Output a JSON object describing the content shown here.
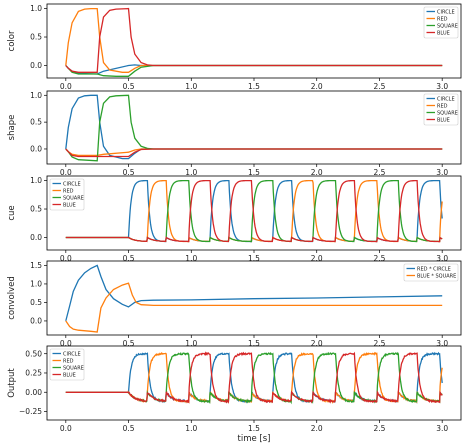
{
  "figure": {
    "xlabel": "time [s]"
  },
  "legend_colors": {
    "CIRCLE": "#1f77b4",
    "RED": "#ff7f0e",
    "SQUARE": "#2ca02c",
    "BLUE": "#d62728",
    "RED * CIRCLE": "#1f77b4",
    "BLUE * SQUARE": "#ff7f0e"
  },
  "chart_data": [
    {
      "type": "line",
      "ylabel": "color",
      "xlim": [
        -0.15,
        3.15
      ],
      "ylim": [
        -0.22,
        1.08
      ],
      "xticks": [
        0.0,
        0.5,
        1.0,
        1.5,
        2.0,
        2.5,
        3.0
      ],
      "xticklabels": [
        "0.0",
        "0.5",
        "1.0",
        "1.5",
        "2.0",
        "2.5",
        "3.0"
      ],
      "yticks": [
        0.0,
        0.5,
        1.0
      ],
      "yticklabels": [
        "0.0",
        "0.5",
        "1.0"
      ],
      "legend": [
        "CIRCLE",
        "RED",
        "SQUARE",
        "BLUE"
      ],
      "legend_loc": "upper right",
      "series": [
        {
          "name": "CIRCLE",
          "color": "#1f77b4",
          "x": [
            0,
            0.02,
            0.05,
            0.1,
            0.25,
            0.3,
            0.5,
            0.55,
            0.6,
            0.7,
            3.0
          ],
          "y": [
            0,
            -0.05,
            -0.1,
            -0.14,
            -0.15,
            -0.1,
            0.0,
            0.01,
            0.0,
            0.0,
            0.0
          ]
        },
        {
          "name": "RED",
          "color": "#ff7f0e",
          "x": [
            0,
            0.02,
            0.05,
            0.1,
            0.15,
            0.2,
            0.25,
            0.27,
            0.3,
            0.35,
            0.45,
            0.5,
            0.55,
            0.6,
            0.7,
            3.0
          ],
          "y": [
            0,
            0.4,
            0.75,
            0.95,
            0.99,
            1.0,
            1.0,
            0.5,
            0.05,
            -0.08,
            -0.12,
            -0.12,
            -0.05,
            0.0,
            0.0,
            0.0
          ]
        },
        {
          "name": "SQUARE",
          "color": "#2ca02c",
          "x": [
            0,
            0.02,
            0.05,
            0.1,
            0.25,
            0.3,
            0.4,
            0.5,
            0.55,
            0.6,
            0.7,
            3.0
          ],
          "y": [
            0,
            -0.05,
            -0.12,
            -0.15,
            -0.15,
            -0.18,
            -0.19,
            -0.19,
            -0.1,
            -0.03,
            0.0,
            0.0
          ]
        },
        {
          "name": "BLUE",
          "color": "#d62728",
          "x": [
            0,
            0.02,
            0.05,
            0.1,
            0.25,
            0.27,
            0.3,
            0.35,
            0.4,
            0.5,
            0.52,
            0.55,
            0.6,
            0.65,
            0.7,
            3.0
          ],
          "y": [
            0,
            -0.05,
            -0.1,
            -0.12,
            -0.12,
            0.5,
            0.85,
            0.97,
            0.99,
            1.0,
            0.5,
            0.2,
            0.05,
            0.01,
            0.0,
            0.0
          ]
        }
      ]
    },
    {
      "type": "line",
      "ylabel": "shape",
      "xlim": [
        -0.15,
        3.15
      ],
      "ylim": [
        -0.28,
        1.08
      ],
      "xticks": [
        0.0,
        0.5,
        1.0,
        1.5,
        2.0,
        2.5,
        3.0
      ],
      "xticklabels": [
        "0.0",
        "0.5",
        "1.0",
        "1.5",
        "2.0",
        "2.5",
        "3.0"
      ],
      "yticks": [
        0.0,
        0.5,
        1.0
      ],
      "yticklabels": [
        "0.0",
        "0.5",
        "1.0"
      ],
      "legend": [
        "CIRCLE",
        "RED",
        "SQUARE",
        "BLUE"
      ],
      "legend_loc": "upper right",
      "series": [
        {
          "name": "CIRCLE",
          "color": "#1f77b4",
          "x": [
            0,
            0.02,
            0.05,
            0.1,
            0.15,
            0.2,
            0.25,
            0.27,
            0.3,
            0.35,
            0.45,
            0.5,
            0.55,
            0.6,
            0.7,
            3.0
          ],
          "y": [
            0,
            0.4,
            0.75,
            0.95,
            0.99,
            1.0,
            1.0,
            0.5,
            0.05,
            -0.12,
            -0.18,
            -0.18,
            -0.08,
            0.0,
            0.0,
            0.0
          ]
        },
        {
          "name": "RED",
          "color": "#ff7f0e",
          "x": [
            0,
            0.02,
            0.05,
            0.1,
            0.25,
            0.3,
            0.5,
            0.55,
            0.6,
            0.7,
            3.0
          ],
          "y": [
            0,
            -0.05,
            -0.1,
            -0.12,
            -0.12,
            -0.1,
            -0.06,
            -0.02,
            0.0,
            0.0,
            0.0
          ]
        },
        {
          "name": "SQUARE",
          "color": "#2ca02c",
          "x": [
            0,
            0.02,
            0.05,
            0.1,
            0.25,
            0.27,
            0.3,
            0.35,
            0.4,
            0.5,
            0.52,
            0.55,
            0.6,
            0.65,
            0.7,
            3.0
          ],
          "y": [
            0,
            -0.05,
            -0.15,
            -0.2,
            -0.22,
            0.5,
            0.85,
            0.97,
            0.99,
            1.0,
            0.5,
            0.2,
            0.05,
            0.01,
            0.0,
            0.0
          ]
        },
        {
          "name": "BLUE",
          "color": "#d62728",
          "x": [
            0,
            0.02,
            0.05,
            0.1,
            0.25,
            0.3,
            0.5,
            0.55,
            0.6,
            0.7,
            3.0
          ],
          "y": [
            0,
            -0.05,
            -0.12,
            -0.14,
            -0.14,
            -0.14,
            -0.14,
            -0.06,
            -0.01,
            0.0,
            0.0
          ]
        }
      ]
    },
    {
      "type": "line",
      "ylabel": "cue",
      "xlim": [
        -0.15,
        3.15
      ],
      "ylim": [
        -0.22,
        1.08
      ],
      "xticks": [
        0.0,
        0.5,
        1.0,
        1.5,
        2.0,
        2.5,
        3.0
      ],
      "xticklabels": [
        "0.0",
        "0.5",
        "1.0",
        "1.5",
        "2.0",
        "2.5",
        "3.0"
      ],
      "yticks": [
        0.0,
        0.5,
        1.0
      ],
      "yticklabels": [
        "0.0",
        "0.5",
        "1.0"
      ],
      "legend": [
        "CIRCLE",
        "RED",
        "SQUARE",
        "BLUE"
      ],
      "legend_loc": "upper left",
      "pulses": {
        "onsets": [
          0.5,
          0.65,
          0.8,
          0.98,
          1.15,
          1.3,
          1.48,
          1.65,
          1.8,
          1.97,
          2.15,
          2.3,
          2.48,
          2.65,
          2.8,
          2.98
        ],
        "series_order": [
          "CIRCLE",
          "RED",
          "SQUARE",
          "BLUE",
          "CIRCLE",
          "BLUE",
          "SQUARE",
          "CIRCLE",
          "RED",
          "SQUARE",
          "BLUE",
          "RED",
          "SQUARE",
          "BLUE",
          "CIRCLE",
          "RED"
        ],
        "peak": 1.0,
        "undershoot": -0.12
      },
      "series": [
        {
          "name": "CIRCLE",
          "color": "#1f77b4"
        },
        {
          "name": "RED",
          "color": "#ff7f0e"
        },
        {
          "name": "SQUARE",
          "color": "#2ca02c"
        },
        {
          "name": "BLUE",
          "color": "#d62728"
        }
      ]
    },
    {
      "type": "line",
      "ylabel": "convolved",
      "xlim": [
        -0.15,
        3.15
      ],
      "ylim": [
        -0.38,
        1.62
      ],
      "xticks": [
        0.0,
        0.5,
        1.0,
        1.5,
        2.0,
        2.5,
        3.0
      ],
      "xticklabels": [
        "0.0",
        "0.5",
        "1.0",
        "1.5",
        "2.0",
        "2.5",
        "3.0"
      ],
      "yticks": [
        0.0,
        0.5,
        1.0,
        1.5
      ],
      "yticklabels": [
        "0.0",
        "0.5",
        "1.0",
        "1.5"
      ],
      "legend": [
        "RED * CIRCLE",
        "BLUE * SQUARE"
      ],
      "legend_loc": "upper right",
      "series": [
        {
          "name": "RED * CIRCLE",
          "color": "#1f77b4",
          "x": [
            0,
            0.03,
            0.06,
            0.1,
            0.15,
            0.2,
            0.25,
            0.28,
            0.32,
            0.38,
            0.45,
            0.5,
            0.55,
            0.6,
            0.7,
            1.0,
            1.5,
            2.0,
            2.5,
            3.0
          ],
          "y": [
            0,
            0.4,
            0.8,
            1.1,
            1.3,
            1.42,
            1.5,
            1.2,
            0.85,
            0.6,
            0.45,
            0.38,
            0.5,
            0.55,
            0.56,
            0.57,
            0.6,
            0.62,
            0.65,
            0.68
          ]
        },
        {
          "name": "BLUE * SQUARE",
          "color": "#ff7f0e",
          "x": [
            0,
            0.03,
            0.06,
            0.1,
            0.2,
            0.25,
            0.28,
            0.32,
            0.38,
            0.45,
            0.5,
            0.53,
            0.56,
            0.6,
            0.7,
            1.0,
            2.0,
            3.0
          ],
          "y": [
            0,
            -0.15,
            -0.22,
            -0.25,
            -0.28,
            -0.3,
            0.35,
            0.62,
            0.85,
            0.97,
            1.02,
            0.7,
            0.5,
            0.44,
            0.42,
            0.42,
            0.42,
            0.42
          ]
        }
      ]
    },
    {
      "type": "line",
      "ylabel": "Output",
      "xlim": [
        -0.15,
        3.15
      ],
      "ylim": [
        -0.36,
        0.6
      ],
      "xticks": [
        0.0,
        0.5,
        1.0,
        1.5,
        2.0,
        2.5,
        3.0
      ],
      "xticklabels": [
        "0.0",
        "0.5",
        "1.0",
        "1.5",
        "2.0",
        "2.5",
        "3.0"
      ],
      "yticks": [
        -0.25,
        0.0,
        0.25,
        0.5
      ],
      "yticklabels": [
        "−0.25",
        "0.00",
        "0.25",
        "0.50"
      ],
      "legend": [
        "CIRCLE",
        "RED",
        "SQUARE",
        "BLUE"
      ],
      "legend_loc": "upper left",
      "pulses": {
        "onsets": [
          0.5,
          0.65,
          0.8,
          0.98,
          1.15,
          1.3,
          1.48,
          1.65,
          1.8,
          1.97,
          2.15,
          2.3,
          2.48,
          2.65,
          2.8,
          2.98
        ],
        "series_order": [
          "CIRCLE",
          "RED",
          "SQUARE",
          "BLUE",
          "CIRCLE",
          "BLUE",
          "SQUARE",
          "CIRCLE",
          "RED",
          "SQUARE",
          "BLUE",
          "RED",
          "SQUARE",
          "BLUE",
          "CIRCLE",
          "RED"
        ],
        "peak": 0.5,
        "undershoot": -0.2
      },
      "series": [
        {
          "name": "CIRCLE",
          "color": "#1f77b4"
        },
        {
          "name": "RED",
          "color": "#ff7f0e"
        },
        {
          "name": "SQUARE",
          "color": "#2ca02c"
        },
        {
          "name": "BLUE",
          "color": "#d62728"
        }
      ]
    }
  ]
}
